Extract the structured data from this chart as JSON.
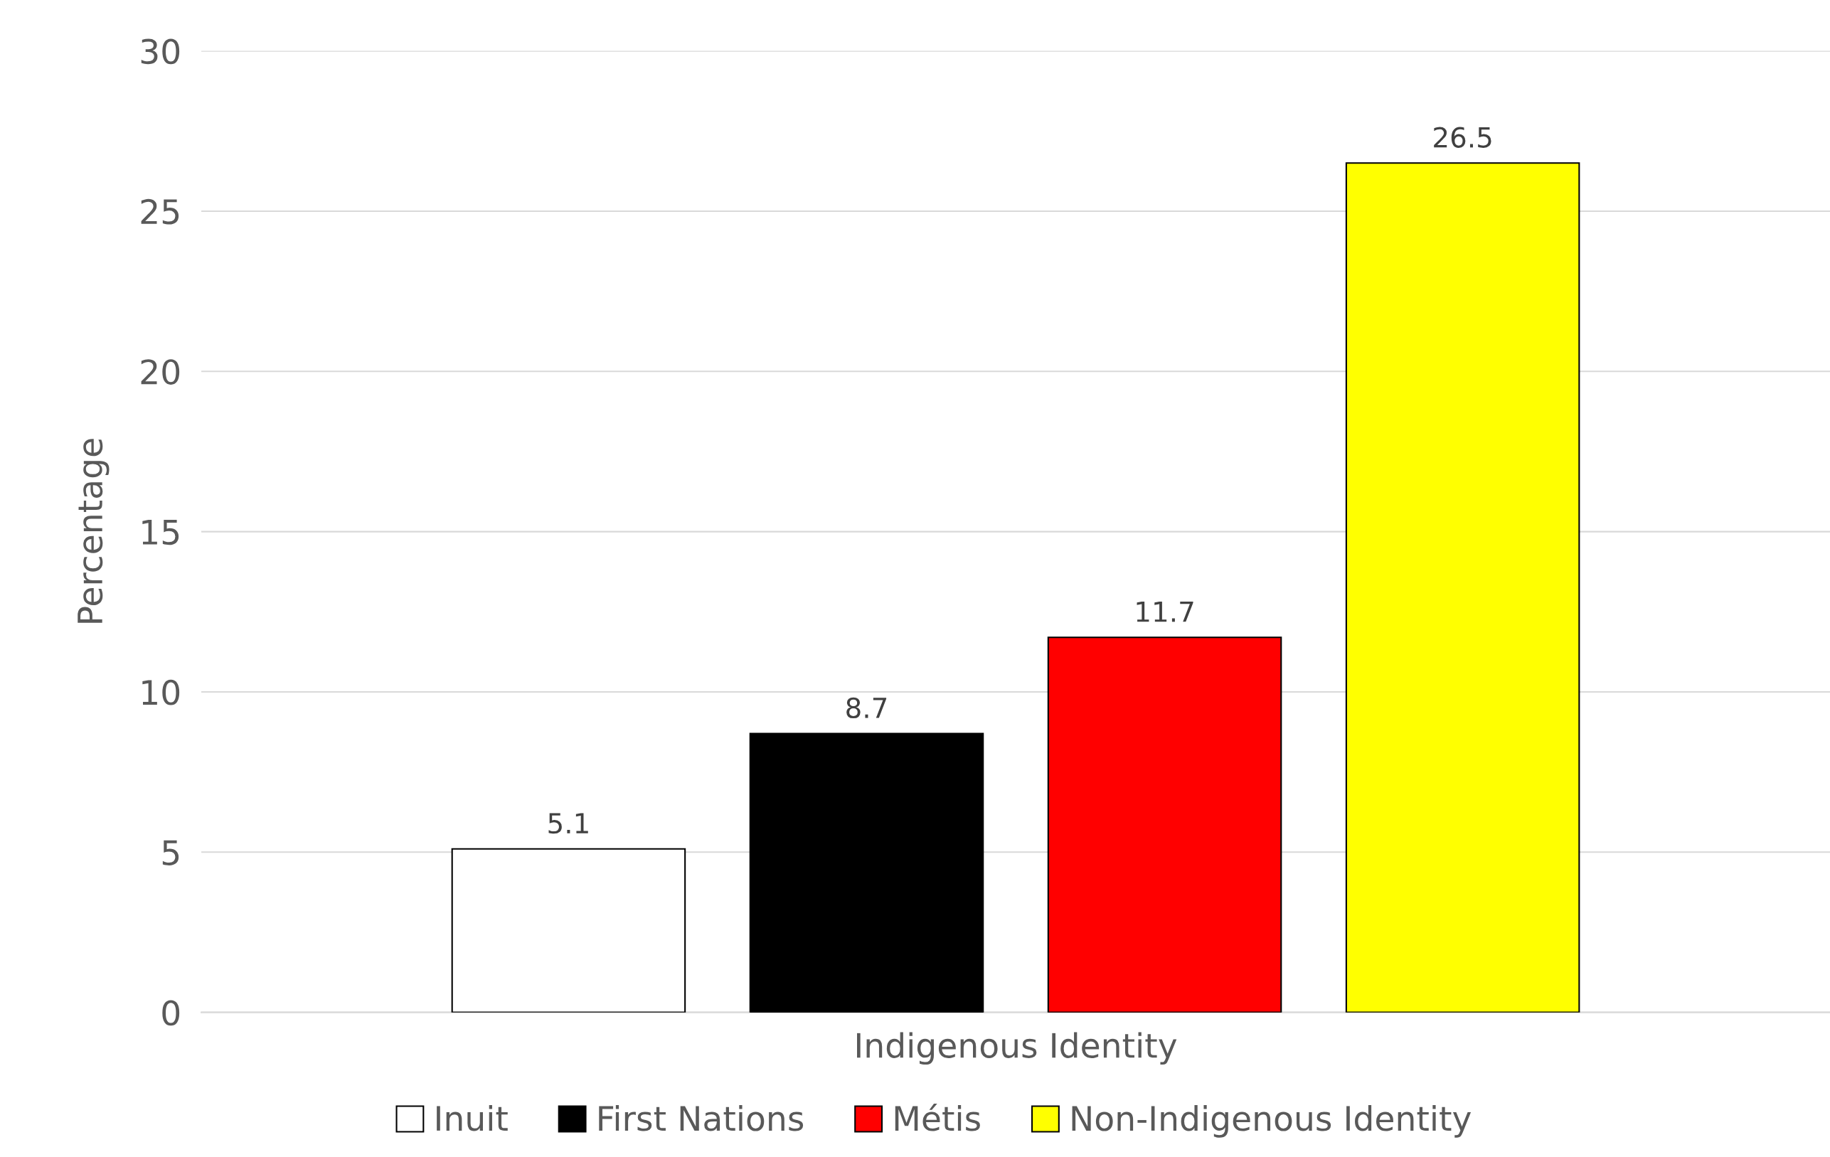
{
  "chart_data": {
    "type": "bar",
    "categories": [
      "Indigenous Identity"
    ],
    "ylabel": "Percentage",
    "series": [
      {
        "name": "Inuit",
        "color": "#ffffff",
        "values": [
          5.1
        ]
      },
      {
        "name": "First Nations",
        "color": "#000000",
        "values": [
          8.7
        ]
      },
      {
        "name": "Métis",
        "color": "#ff0000",
        "values": [
          11.7
        ]
      },
      {
        "name": "Non-Indigenous Identity",
        "color": "#ffff00",
        "values": [
          26.5
        ]
      }
    ],
    "ylim": [
      0,
      30
    ],
    "yticks": [
      0,
      5,
      10,
      15,
      20,
      25,
      30
    ],
    "grid": "y",
    "legend": "bottom",
    "data_labels": true
  }
}
